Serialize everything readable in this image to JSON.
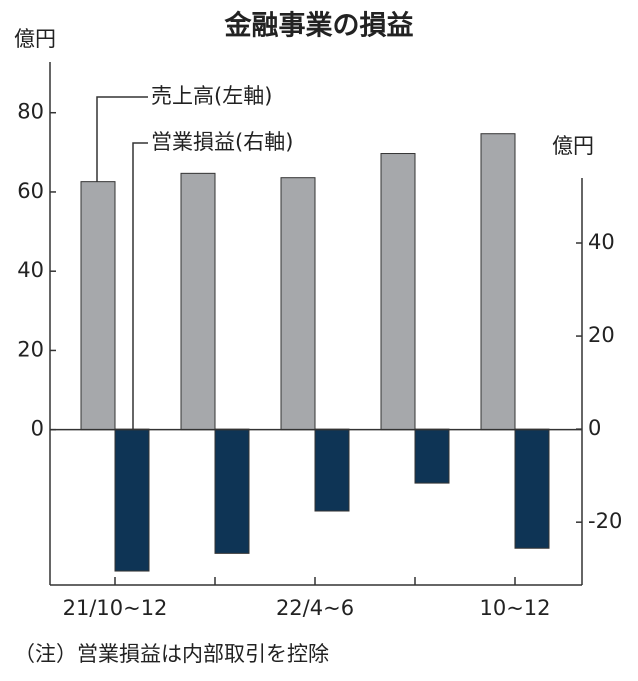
{
  "chart_data": {
    "type": "bar",
    "title": "金融事業の損益",
    "ylabel": "億円",
    "y2label": "億円",
    "categories": [
      "21/10~12",
      null,
      "22/4~6",
      null,
      "10~12"
    ],
    "series": [
      {
        "name": "売上高(左軸)",
        "color": "#a6a8ab",
        "values": [
          62.6,
          64.7,
          63.6,
          69.7,
          74.7
        ]
      },
      {
        "name": "営業損益(右軸)",
        "color": "#0e3455",
        "axis": "y2",
        "values": [
          -30.5,
          -26.7,
          -17.6,
          -11.6,
          -25.6
        ]
      }
    ],
    "ylim": [
      -39.2,
      92.8
    ],
    "yticks": [
      0,
      20,
      40,
      60,
      80
    ],
    "y2lim": [
      -33.5,
      78.9
    ],
    "y2ticks": [
      -20,
      0,
      20,
      40
    ],
    "note": "（注）営業損益は内部取引を控除"
  }
}
